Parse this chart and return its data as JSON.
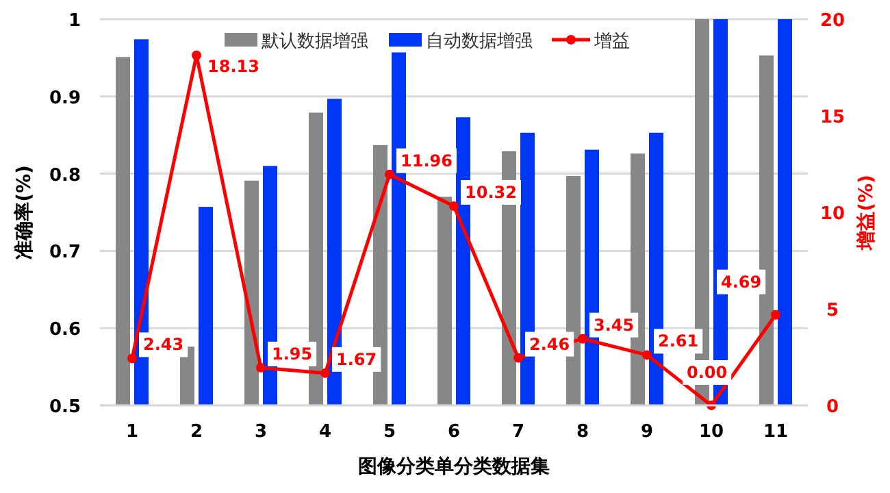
{
  "chart_data": {
    "type": "bar",
    "categories": [
      "1",
      "2",
      "3",
      "4",
      "5",
      "6",
      "7",
      "8",
      "9",
      "10",
      "11"
    ],
    "xlabel": "图像分类单分类数据集",
    "ylabel": "准确率(%)",
    "y2label": "增益(%)",
    "ylim": [
      0.5,
      1
    ],
    "yticks": [
      0.5,
      0.6,
      0.7,
      0.8,
      0.9,
      1
    ],
    "y2lim": [
      0,
      20
    ],
    "y2ticks": [
      0,
      5,
      10,
      15,
      20
    ],
    "grid": "y",
    "legend": "top right",
    "series": [
      {
        "name": "默认数据增强",
        "color": "#878787",
        "values": [
          0.951,
          0.576,
          0.791,
          0.879,
          0.837,
          0.77,
          0.829,
          0.797,
          0.826,
          1.0,
          0.953
        ]
      },
      {
        "name": "自动数据增强",
        "color": "#0037f5",
        "values": [
          0.974,
          0.757,
          0.81,
          0.897,
          0.957,
          0.873,
          0.853,
          0.831,
          0.853,
          1.0,
          1.0
        ]
      },
      {
        "name": "增益",
        "type": "line",
        "axis": "y2",
        "color": "#ff0000",
        "marker": "circle",
        "values": [
          2.43,
          18.13,
          1.95,
          1.67,
          11.96,
          10.32,
          2.46,
          3.45,
          2.61,
          0.0,
          4.69
        ],
        "value_labels": [
          "2.43",
          "18.13",
          "1.95",
          "1.67",
          "11.96",
          "10.32",
          "2.46",
          "3.45",
          "2.61",
          "0.00",
          "4.69"
        ]
      }
    ]
  }
}
